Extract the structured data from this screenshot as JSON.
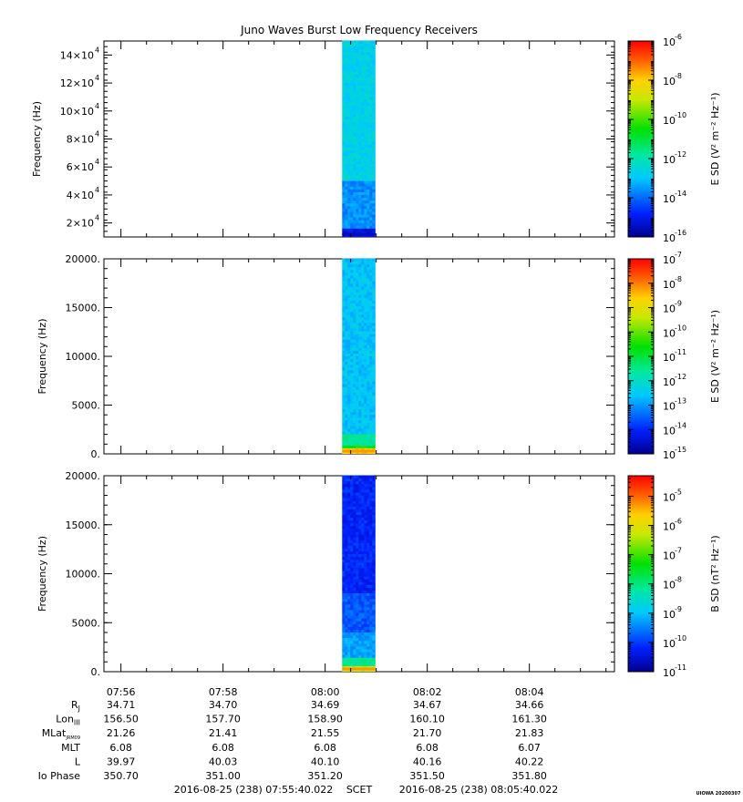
{
  "title": "Juno Waves Burst Low Frequency Receivers",
  "chart_data": [
    {
      "type": "heatmap",
      "panel": 1,
      "ylabel": "Frequency (Hz)",
      "yticks": [
        {
          "value": 20000,
          "mantissa": "2×10",
          "exp": "4"
        },
        {
          "value": 40000,
          "mantissa": "4×10",
          "exp": "4"
        },
        {
          "value": 60000,
          "mantissa": "6×10",
          "exp": "4"
        },
        {
          "value": 80000,
          "mantissa": "8×10",
          "exp": "4"
        },
        {
          "value": 100000,
          "mantissa": "10×10",
          "exp": "4"
        },
        {
          "value": 120000,
          "mantissa": "12×10",
          "exp": "4"
        },
        {
          "value": 140000,
          "mantissa": "14×10",
          "exp": "4"
        }
      ],
      "ylim": [
        10000,
        150000
      ],
      "data_window": [
        "08:00:20",
        "08:00:59"
      ],
      "colorbar": {
        "label": "E SD (V² m⁻² Hz⁻¹)",
        "scale": "log",
        "range_exp": [
          -16,
          -6
        ],
        "ticks": [
          {
            "value": "1e-6",
            "base": "10",
            "exp": "-6"
          },
          {
            "value": "1e-8",
            "base": "10",
            "exp": "-8"
          },
          {
            "value": "1e-10",
            "base": "10",
            "exp": "-10"
          },
          {
            "value": "1e-12",
            "base": "10",
            "exp": "-12"
          },
          {
            "value": "1e-14",
            "base": "10",
            "exp": "-14"
          },
          {
            "value": "1e-16",
            "base": "10",
            "exp": "-16"
          }
        ]
      }
    },
    {
      "type": "heatmap",
      "panel": 2,
      "ylabel": "Frequency (Hz)",
      "yticks": [
        {
          "value": 0,
          "label": "0."
        },
        {
          "value": 5000,
          "label": "5000."
        },
        {
          "value": 10000,
          "label": "10000."
        },
        {
          "value": 15000,
          "label": "15000."
        },
        {
          "value": 20000,
          "label": "20000."
        }
      ],
      "ylim": [
        0,
        20000
      ],
      "data_window": [
        "08:00:20",
        "08:00:59"
      ],
      "colorbar": {
        "label": "E SD (V² m⁻² Hz⁻¹)",
        "scale": "log",
        "range_exp": [
          -15,
          -7
        ],
        "ticks": [
          {
            "value": "1e-7",
            "base": "10",
            "exp": "-7"
          },
          {
            "value": "1e-8",
            "base": "10",
            "exp": "-8"
          },
          {
            "value": "1e-9",
            "base": "10",
            "exp": "-9"
          },
          {
            "value": "1e-10",
            "base": "10",
            "exp": "-10"
          },
          {
            "value": "1e-11",
            "base": "10",
            "exp": "-11"
          },
          {
            "value": "1e-12",
            "base": "10",
            "exp": "-12"
          },
          {
            "value": "1e-13",
            "base": "10",
            "exp": "-13"
          },
          {
            "value": "1e-14",
            "base": "10",
            "exp": "-14"
          },
          {
            "value": "1e-15",
            "base": "10",
            "exp": "-15"
          }
        ]
      }
    },
    {
      "type": "heatmap",
      "panel": 3,
      "ylabel": "Frequency (Hz)",
      "yticks": [
        {
          "value": 0,
          "label": "0."
        },
        {
          "value": 5000,
          "label": "5000."
        },
        {
          "value": 10000,
          "label": "10000."
        },
        {
          "value": 15000,
          "label": "15000."
        },
        {
          "value": 20000,
          "label": "20000."
        }
      ],
      "ylim": [
        0,
        20000
      ],
      "data_window": [
        "08:00:20",
        "08:00:59"
      ],
      "colorbar": {
        "label": "B SD (nT² Hz⁻¹)",
        "scale": "log",
        "range_exp": [
          -11,
          -4.3
        ],
        "ticks": [
          {
            "value": "1e-5",
            "base": "10",
            "exp": "-5"
          },
          {
            "value": "1e-6",
            "base": "10",
            "exp": "-6"
          },
          {
            "value": "1e-7",
            "base": "10",
            "exp": "-7"
          },
          {
            "value": "1e-8",
            "base": "10",
            "exp": "-8"
          },
          {
            "value": "1e-9",
            "base": "10",
            "exp": "-9"
          },
          {
            "value": "1e-10",
            "base": "10",
            "exp": "-10"
          },
          {
            "value": "1e-11",
            "base": "10",
            "exp": "-11"
          }
        ]
      }
    }
  ],
  "x_axis": {
    "range": [
      "07:55:40",
      "08:05:40"
    ],
    "ticks": [
      "07:56",
      "07:58",
      "08:00",
      "08:02",
      "08:04"
    ]
  },
  "ephemeris": {
    "rows": [
      {
        "base": "R",
        "sub": "J",
        "values": [
          "34.71",
          "34.70",
          "34.69",
          "34.67",
          "34.66"
        ]
      },
      {
        "base": "Lon",
        "sub": "III",
        "values": [
          "156.50",
          "157.70",
          "158.90",
          "160.10",
          "161.30"
        ]
      },
      {
        "base": "MLat",
        "sub": "JRM09",
        "values": [
          "21.26",
          "21.41",
          "21.55",
          "21.70",
          "21.83"
        ]
      },
      {
        "base": "MLT",
        "sub": "",
        "values": [
          "6.08",
          "6.08",
          "6.08",
          "6.08",
          "6.07"
        ]
      },
      {
        "base": "L",
        "sub": "",
        "values": [
          "39.97",
          "40.03",
          "40.10",
          "40.16",
          "40.22"
        ]
      },
      {
        "base": "Io Phase",
        "sub": "",
        "values": [
          "350.70",
          "351.00",
          "351.20",
          "351.50",
          "351.80"
        ]
      }
    ]
  },
  "footer": {
    "start": "2016-08-25 (238) 07:55:40.022",
    "scet": "SCET",
    "end": "2016-08-25 (238) 08:05:40.022",
    "stamp": "UIOWA 20200307"
  }
}
